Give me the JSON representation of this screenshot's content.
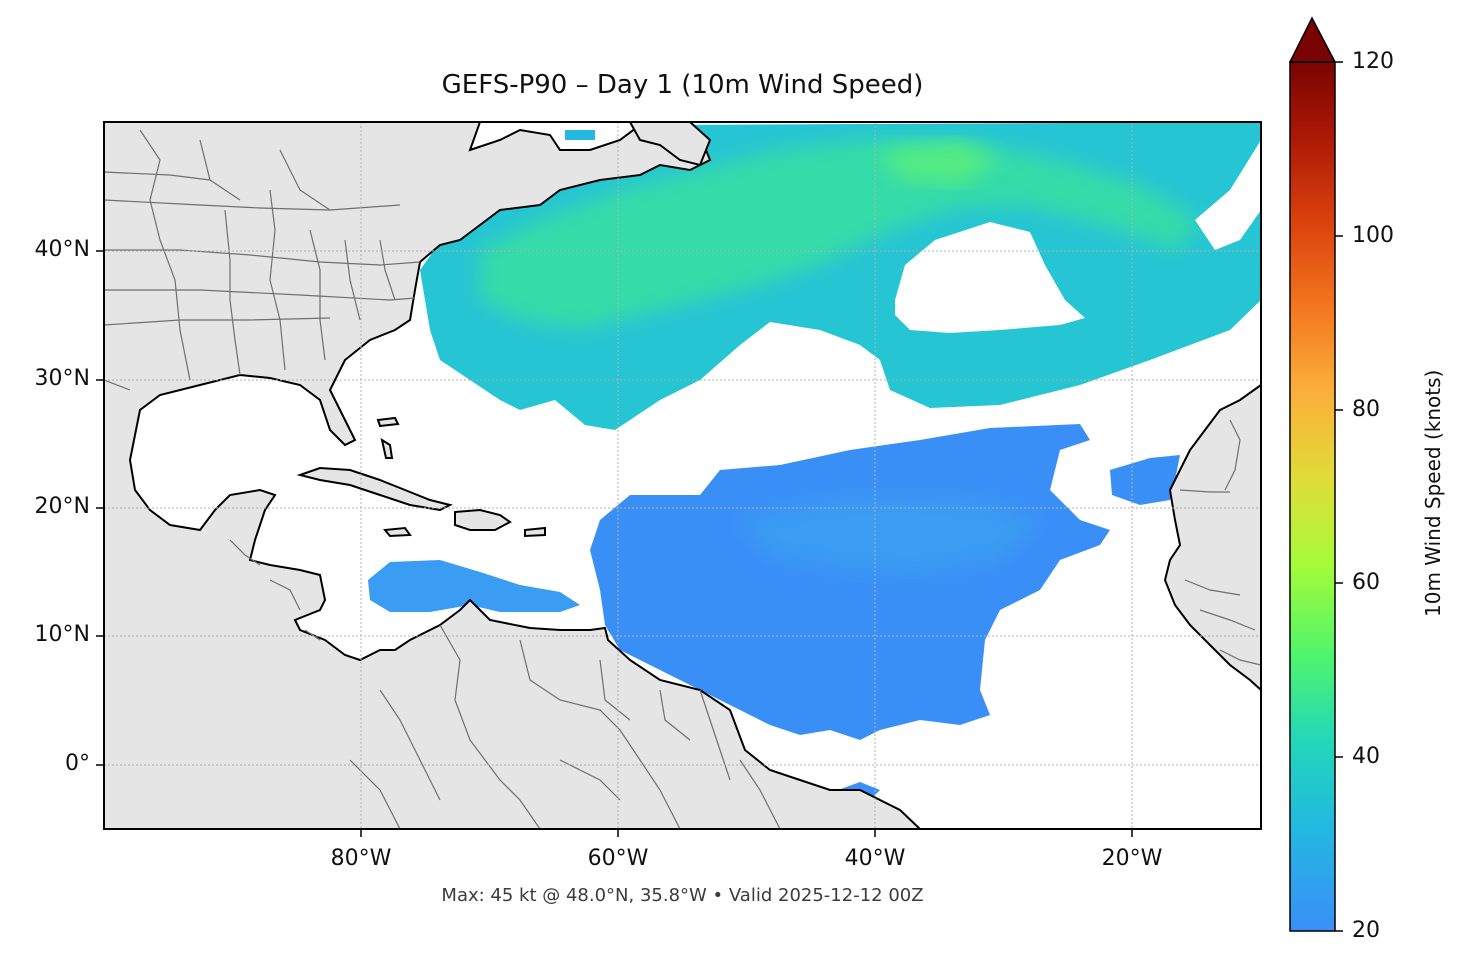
{
  "title": "GEFS-P90 – Day 1 (10m Wind Speed)",
  "footer": "Max: 45 kt @ 48.0°N, 35.8°W • Valid 2025-12-12 00Z",
  "map": {
    "projection": "PlateCarree",
    "lon_range": [
      -100,
      -10
    ],
    "lat_range": [
      -5,
      50
    ],
    "lat_ticks": [
      "40°N",
      "30°N",
      "20°N",
      "10°N",
      "0°"
    ],
    "lon_ticks": [
      "80°W",
      "60°W",
      "40°W",
      "20°W"
    ],
    "grid": true,
    "land_color": "#e5e5e5",
    "ocean_color": "#ffffff",
    "max_wind_kt": 45,
    "max_location": "48.0°N, 35.8°W"
  },
  "colorbar": {
    "label": "10m Wind Speed (knots)",
    "ticks": [
      "20",
      "40",
      "60",
      "80",
      "100",
      "120"
    ],
    "range": [
      20,
      120
    ],
    "extend": "max",
    "colors": [
      "#3a8ff7",
      "#22c3d3",
      "#2ff29a",
      "#a4fb38",
      "#e7d634",
      "#fba535",
      "#f06618",
      "#c1280a",
      "#7a0403"
    ]
  }
}
